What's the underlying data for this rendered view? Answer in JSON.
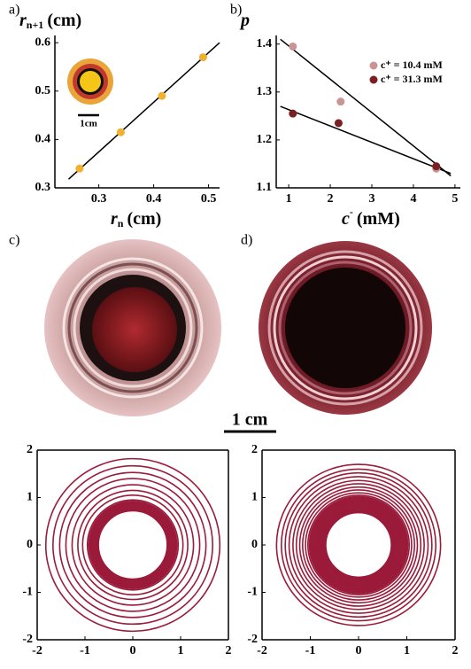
{
  "chart_data": [
    {
      "type": "scatter",
      "panel": "a)",
      "ylabel": {
        "symbol": "r",
        "sub": "n+1",
        "unit": "(cm)"
      },
      "xlabel": {
        "symbol": "r",
        "sub": "n",
        "unit": "(cm)"
      },
      "inset_scale": "1cm",
      "xlim": [
        0.22,
        0.52
      ],
      "ylim": [
        0.3,
        0.615
      ],
      "xticks": [
        0.3,
        0.4,
        0.5
      ],
      "yticks": [
        0.3,
        0.4,
        0.5,
        0.6
      ],
      "series": [
        {
          "color": "#f0b030",
          "x": [
            0.265,
            0.34,
            0.415,
            0.49
          ],
          "y": [
            0.34,
            0.415,
            0.49,
            0.57
          ]
        }
      ],
      "fits": [
        {
          "color": "#000000",
          "x": [
            0.245,
            0.52
          ],
          "y": [
            0.318,
            0.6
          ]
        }
      ]
    },
    {
      "type": "scatter",
      "panel": "b)",
      "ylabel": {
        "symbol": "p"
      },
      "xlabel": {
        "symbol": "c",
        "sup": "-",
        "unit": "(mM)"
      },
      "xlim": [
        0.7,
        5.13
      ],
      "ylim": [
        1.1,
        1.418
      ],
      "xticks": [
        1,
        2,
        3,
        4,
        5
      ],
      "yticks": [
        1.1,
        1.2,
        1.3,
        1.4
      ],
      "series": [
        {
          "name": "c⁺ = 10.4 mM",
          "color": "#c99494",
          "x": [
            1.1,
            2.25,
            4.55
          ],
          "y": [
            1.395,
            1.28,
            1.14
          ]
        },
        {
          "name": "c⁺ = 31.3 mM",
          "color": "#7a1f22",
          "x": [
            1.1,
            2.2,
            4.55
          ],
          "y": [
            1.255,
            1.235,
            1.145
          ]
        }
      ],
      "fits": [
        {
          "color": "#000000",
          "x": [
            0.8,
            4.9
          ],
          "y": [
            1.41,
            1.125
          ]
        },
        {
          "color": "#000000",
          "x": [
            0.8,
            4.9
          ],
          "y": [
            1.27,
            1.13
          ]
        }
      ]
    },
    {
      "type": "rings",
      "color": "#9b1b3a",
      "xlim": [
        -2,
        2
      ],
      "ylim": [
        -2,
        2
      ],
      "xticks": [
        -2,
        -1,
        0,
        1,
        2
      ],
      "yticks": [
        -2,
        -1,
        0,
        1,
        2
      ],
      "radii": [
        0.72,
        0.74,
        0.76,
        0.78,
        0.8,
        0.82,
        0.84,
        0.86,
        0.88,
        0.9,
        0.92,
        0.95,
        1.05,
        1.15,
        1.27,
        1.4,
        1.53,
        1.67,
        1.82
      ]
    },
    {
      "type": "rings",
      "color": "#9b1b3a",
      "xlim": [
        -2,
        2
      ],
      "ylim": [
        -2,
        2
      ],
      "xticks": [
        -2,
        -1,
        0,
        1,
        2
      ],
      "yticks": [
        -2,
        -1,
        0,
        1,
        2
      ],
      "radii": [
        0.68,
        0.7,
        0.72,
        0.74,
        0.76,
        0.78,
        0.8,
        0.82,
        0.84,
        0.86,
        0.88,
        0.9,
        0.92,
        0.94,
        0.96,
        0.98,
        1.0,
        1.02,
        1.05,
        1.1,
        1.16,
        1.22,
        1.29,
        1.36,
        1.44,
        1.52,
        1.6,
        1.7
      ]
    }
  ],
  "photos": {
    "c": "c)",
    "d": "d)",
    "scale_bar": "1 cm"
  }
}
